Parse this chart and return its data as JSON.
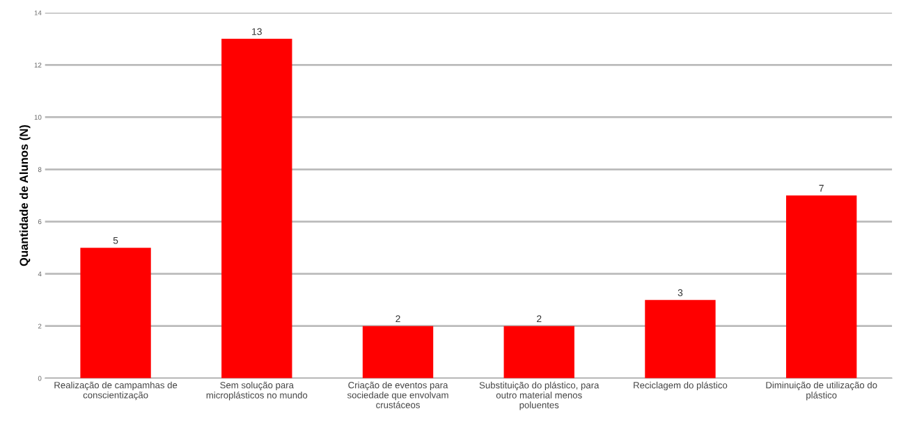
{
  "chart_data": {
    "type": "bar",
    "ylabel": "Quantidade de Alunos (N)",
    "categories": [
      "Realização de campamhas de\nconscientização",
      "Sem solução para\nmicroplásticos no mundo",
      "Criação de eventos para\nsociedade que envolvam\ncrustáceos",
      "Substituição do plástico, para\noutro material menos\npoluentes",
      "Reciclagem do plástico",
      "Diminuição de utilização do\nplástico"
    ],
    "values": [
      5,
      13,
      2,
      2,
      3,
      7
    ],
    "color": "#ff0000",
    "data_labels": true,
    "ylim": [
      0,
      14
    ],
    "yticks": [
      0,
      2,
      4,
      6,
      8,
      10,
      12,
      14
    ],
    "grid": "y",
    "legend": false
  }
}
